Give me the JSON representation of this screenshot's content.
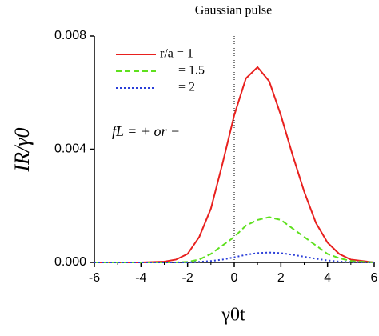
{
  "chart_data": {
    "type": "line",
    "title": "Gaussian pulse",
    "xlabel": "γ0t",
    "ylabel": "IR/γ0",
    "annotation": "fL = + or −",
    "x": [
      -6,
      -5,
      -4,
      -3,
      -2.5,
      -2,
      -1.5,
      -1,
      -0.5,
      0,
      0.5,
      1,
      1.5,
      2,
      2.5,
      3,
      3.5,
      4,
      4.5,
      5,
      6
    ],
    "series": [
      {
        "name": "r/a = 1",
        "color": "#e8201e",
        "dash": "solid",
        "values": [
          0,
          0,
          0,
          3e-05,
          0.0001,
          0.0003,
          0.0009,
          0.0019,
          0.0035,
          0.0052,
          0.0065,
          0.0069,
          0.0064,
          0.0052,
          0.0038,
          0.0025,
          0.0014,
          0.0007,
          0.0003,
          0.0001,
          0
        ]
      },
      {
        "name": "= 1.5",
        "color": "#5ee01e",
        "dash": "dashed",
        "values": [
          0,
          0,
          0,
          0,
          0,
          2e-05,
          0.0001,
          0.0003,
          0.0006,
          0.0009,
          0.0013,
          0.0015,
          0.0016,
          0.0015,
          0.0012,
          0.0009,
          0.0006,
          0.0003,
          0.00015,
          5e-05,
          0
        ]
      },
      {
        "name": "= 2",
        "color": "#2a3ed8",
        "dash": "dotted",
        "values": [
          0,
          0,
          0,
          0,
          0,
          0,
          2e-05,
          5e-05,
          0.0001,
          0.00018,
          0.00027,
          0.00033,
          0.00035,
          0.00033,
          0.00027,
          0.0002,
          0.00013,
          7e-05,
          3e-05,
          1e-05,
          0
        ]
      }
    ],
    "xlim": [
      -6,
      6
    ],
    "xticks": [
      -6,
      -4,
      -2,
      0,
      2,
      4,
      6
    ],
    "ylim": [
      0,
      0.008
    ],
    "yticks": [
      {
        "value": 0,
        "label": "0.000"
      },
      {
        "value": 0.004,
        "label": "0.004"
      },
      {
        "value": 0.008,
        "label": "0.008"
      }
    ],
    "vline_x": 0
  }
}
